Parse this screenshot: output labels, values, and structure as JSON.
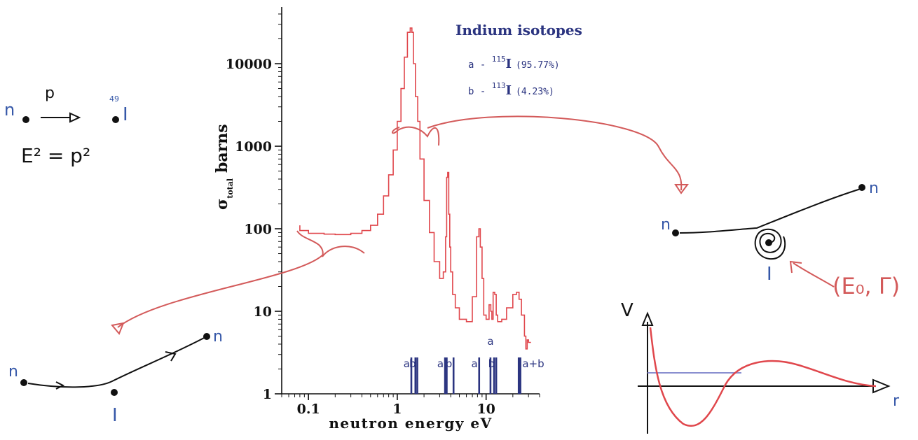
{
  "colors": {
    "ink": "#111111",
    "hand_blue": "#3557a8",
    "hand_red": "#d35a5a",
    "curve_red": "#e0474c",
    "legend_navy": "#2b3480",
    "potential_level": "#8a8fd0"
  },
  "sketch_top_left": {
    "particle_left": "n",
    "momentum": "p",
    "particle_right_mass": "49",
    "particle_right": "I",
    "relation": "E² = p²"
  },
  "chart_data": {
    "type": "line",
    "title": "Indium isotopes",
    "xlabel": "neutron energy eV",
    "ylabel_main": "σ",
    "ylabel_sub": "total",
    "ylabel_unit": "barns",
    "xscale": "log",
    "yscale": "log",
    "xlim": [
      0.05,
      40
    ],
    "ylim": [
      1,
      40000
    ],
    "x_ticks": [
      {
        "v": 0.1,
        "label": "0.1"
      },
      {
        "v": 1,
        "label": "1"
      },
      {
        "v": 10,
        "label": "10"
      }
    ],
    "y_ticks": [
      {
        "v": 1,
        "label": "1"
      },
      {
        "v": 10,
        "label": "10"
      },
      {
        "v": 100,
        "label": "100"
      },
      {
        "v": 1000,
        "label": "1000"
      },
      {
        "v": 10000,
        "label": "10000"
      }
    ],
    "legend": {
      "a_prefix": "a - ",
      "a_mass": "115",
      "a_symbol": "I",
      "a_abund": "(95.77%)",
      "b_prefix": "b - ",
      "b_mass": "113",
      "b_symbol": "I",
      "b_abund": "(4.23%)"
    },
    "series": [
      {
        "x": [
          0.08,
          0.1,
          0.15,
          0.2,
          0.3,
          0.4,
          0.5,
          0.6,
          0.7,
          0.8,
          0.9,
          1.0,
          1.1,
          1.2,
          1.3,
          1.4,
          1.46,
          1.52,
          1.6,
          1.7,
          1.8,
          2.0,
          2.3,
          2.6,
          3.0,
          3.3,
          3.5,
          3.6,
          3.7,
          3.8,
          3.9,
          4.0,
          4.2,
          4.5,
          5.0,
          6.0,
          7.0,
          7.8,
          8.3,
          8.6,
          9.0,
          9.4,
          10.0,
          10.8,
          11.3,
          11.6,
          12.0,
          12.5,
          13.0,
          13.5,
          14.2,
          15.0,
          17.0,
          20.0,
          22.0,
          23.5,
          25.0,
          27.0,
          28.0,
          29.0,
          30.0,
          32.0
        ],
        "y": [
          110,
          95,
          88,
          86,
          85,
          88,
          95,
          110,
          150,
          250,
          450,
          900,
          2000,
          5000,
          12000,
          24000,
          27000,
          24000,
          10000,
          4000,
          2000,
          700,
          220,
          90,
          40,
          25,
          30,
          80,
          420,
          480,
          150,
          60,
          30,
          16,
          11,
          8,
          7.5,
          15,
          80,
          100,
          60,
          25,
          9,
          8,
          12,
          10,
          8,
          17,
          16,
          9,
          7.5,
          7.5,
          8,
          11,
          16,
          17,
          14,
          9,
          5,
          3.5,
          4.5,
          4.2
        ]
      }
    ],
    "resonance_markers": [
      {
        "x": 1.44,
        "label": "a",
        "thick": false
      },
      {
        "x": 1.6,
        "label": "",
        "thick": false
      },
      {
        "x": 1.68,
        "label": "b",
        "thick": false
      },
      {
        "x": 3.45,
        "label": "a",
        "thick": false
      },
      {
        "x": 3.6,
        "label": "",
        "thick": false
      },
      {
        "x": 4.3,
        "label": "b",
        "thick": false
      },
      {
        "x": 8.35,
        "label": "a",
        "thick": false
      },
      {
        "x": 11.2,
        "label": "a",
        "thick": false
      },
      {
        "x": 12.3,
        "label": "",
        "thick": false
      },
      {
        "x": 13.0,
        "label": "b",
        "thick": false
      },
      {
        "x": 23.8,
        "label": "a+b",
        "thick": true
      }
    ]
  },
  "sketch_bottom_left": {
    "incoming": "n",
    "outgoing": "n",
    "target": "I"
  },
  "sketch_right": {
    "incoming": "n",
    "outgoing": "n",
    "target": "I",
    "params": "(E₀, Γ)"
  },
  "potential_plot": {
    "y_axis": "V",
    "x_axis": "r"
  }
}
